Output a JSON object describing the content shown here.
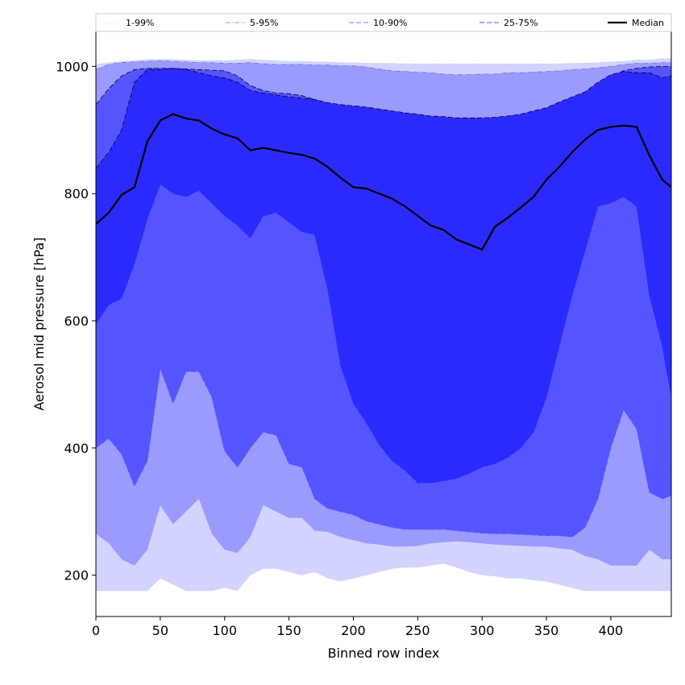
{
  "chart_data": {
    "type": "area",
    "title": "",
    "xlabel": "Binned row index",
    "ylabel": "Aerosol mid pressure [hPa]",
    "xlim": [
      0,
      447
    ],
    "ylim": [
      135,
      1055
    ],
    "x_ticks": [
      0,
      50,
      100,
      150,
      200,
      250,
      300,
      350,
      400
    ],
    "y_ticks": [
      200,
      400,
      600,
      800,
      1000
    ],
    "grid": false,
    "legend_position": "top",
    "x": [
      0,
      10,
      20,
      30,
      40,
      50,
      60,
      70,
      80,
      90,
      100,
      110,
      120,
      130,
      140,
      150,
      160,
      170,
      180,
      190,
      200,
      210,
      220,
      230,
      240,
      250,
      260,
      270,
      280,
      290,
      300,
      310,
      320,
      330,
      340,
      350,
      360,
      370,
      380,
      390,
      400,
      410,
      420,
      430,
      440,
      447
    ],
    "bands": [
      {
        "name": "1-99%",
        "color": "#d3d3ff",
        "edge_style": "dotted",
        "lower": [
          175,
          175,
          175,
          175,
          175,
          195,
          185,
          175,
          175,
          175,
          180,
          175,
          200,
          210,
          210,
          205,
          200,
          205,
          195,
          190,
          195,
          200,
          205,
          210,
          212,
          212,
          215,
          218,
          212,
          205,
          200,
          198,
          195,
          195,
          192,
          190,
          185,
          180,
          175,
          175,
          175,
          175,
          175,
          175,
          175,
          175
        ],
        "upper": [
          1003,
          1006,
          1008,
          1009,
          1011,
          1011,
          1011,
          1010,
          1009,
          1009,
          1009,
          1010,
          1011,
          1010,
          1009,
          1008,
          1008,
          1007,
          1007,
          1006,
          1006,
          1005,
          1005,
          1005,
          1004,
          1004,
          1004,
          1004,
          1004,
          1004,
          1004,
          1004,
          1004,
          1004,
          1004,
          1004,
          1004,
          1005,
          1005,
          1006,
          1007,
          1008,
          1010,
          1010,
          1012,
          1012
        ]
      },
      {
        "name": "5-95%",
        "color": "#9a9aff",
        "edge_style": "dashdot",
        "lower": [
          265,
          250,
          225,
          215,
          240,
          310,
          280,
          300,
          320,
          265,
          240,
          235,
          260,
          310,
          300,
          290,
          290,
          270,
          268,
          260,
          255,
          250,
          248,
          245,
          245,
          246,
          250,
          252,
          253,
          252,
          250,
          248,
          247,
          246,
          245,
          245,
          242,
          240,
          230,
          225,
          215,
          215,
          215,
          240,
          225,
          225
        ],
        "upper": [
          995,
          1003,
          1006,
          1007,
          1008,
          1009,
          1008,
          1007,
          1006,
          1006,
          1005,
          1005,
          1006,
          1004,
          1003,
          1003,
          1003,
          1002,
          1002,
          1001,
          1001,
          999,
          996,
          993,
          992,
          991,
          990,
          988,
          987,
          987,
          988,
          988,
          990,
          990,
          991,
          992,
          993,
          995,
          996,
          998,
          1000,
          1003,
          1005,
          1005,
          1006,
          1006
        ]
      },
      {
        "name": "10-90%",
        "color": "#5555ff",
        "edge_style": "dashed",
        "lower": [
          400,
          415,
          390,
          340,
          380,
          525,
          470,
          520,
          520,
          480,
          395,
          370,
          400,
          425,
          420,
          375,
          370,
          320,
          305,
          300,
          295,
          285,
          280,
          275,
          272,
          272,
          272,
          272,
          270,
          268,
          266,
          265,
          265,
          264,
          263,
          262,
          262,
          260,
          275,
          320,
          400,
          460,
          430,
          330,
          320,
          325
        ],
        "upper": [
          940,
          965,
          985,
          995,
          997,
          997,
          997,
          996,
          995,
          994,
          993,
          985,
          970,
          962,
          958,
          957,
          954,
          948,
          942,
          935,
          925,
          920,
          910,
          900,
          890,
          885,
          882,
          880,
          878,
          883,
          888,
          893,
          895,
          898,
          902,
          910,
          918,
          935,
          955,
          972,
          985,
          993,
          997,
          999,
          1000,
          1000
        ]
      },
      {
        "name": "25-75%",
        "color": "#2a2aff",
        "edge_style": "dashed",
        "lower": [
          595,
          625,
          635,
          690,
          760,
          815,
          800,
          795,
          805,
          785,
          765,
          750,
          730,
          765,
          770,
          755,
          740,
          735,
          650,
          530,
          470,
          440,
          405,
          380,
          365,
          345,
          345,
          348,
          352,
          360,
          370,
          375,
          385,
          400,
          425,
          480,
          560,
          640,
          710,
          780,
          785,
          795,
          780,
          640,
          560,
          480
        ],
        "upper": [
          840,
          865,
          900,
          975,
          995,
          995,
          997,
          995,
          990,
          985,
          982,
          975,
          962,
          958,
          955,
          952,
          950,
          948,
          943,
          940,
          938,
          936,
          933,
          930,
          927,
          925,
          922,
          921,
          919,
          919,
          919,
          920,
          922,
          925,
          930,
          935,
          944,
          952,
          960,
          975,
          987,
          992,
          990,
          990,
          982,
          985
        ]
      }
    ],
    "series": [
      {
        "name": "Median",
        "color": "#000000",
        "values": [
          752,
          770,
          798,
          810,
          882,
          915,
          925,
          918,
          915,
          902,
          893,
          887,
          868,
          872,
          868,
          864,
          861,
          855,
          842,
          825,
          810,
          808,
          800,
          792,
          780,
          765,
          750,
          743,
          728,
          720,
          712,
          748,
          762,
          778,
          795,
          822,
          842,
          865,
          885,
          900,
          905,
          907,
          905,
          860,
          822,
          810
        ]
      }
    ],
    "legend": [
      "1-99%",
      "5-95%",
      "10-90%",
      "25-75%",
      "Median"
    ]
  }
}
